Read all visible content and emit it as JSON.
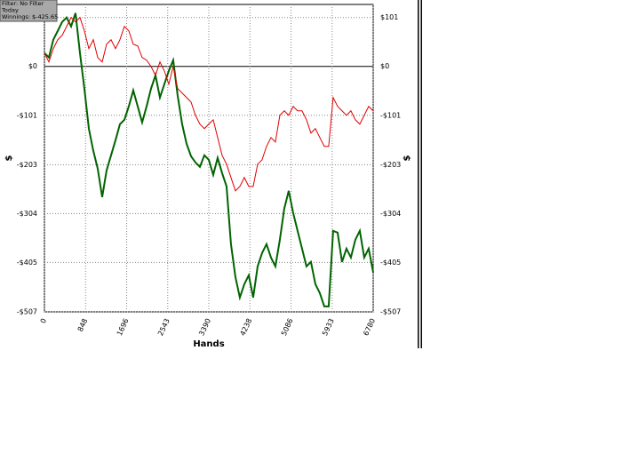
{
  "chart_data": {
    "type": "line",
    "annotations": [
      "Filter: No Filter",
      "Today",
      "Winnings: $-425.65"
    ],
    "xlabel": "Hands",
    "ylabel": "$",
    "x": [
      0,
      92,
      183,
      275,
      366,
      458,
      550,
      641,
      733,
      824,
      916,
      1008,
      1099,
      1191,
      1282,
      1374,
      1466,
      1557,
      1649,
      1740,
      1832,
      1924,
      2015,
      2107,
      2198,
      2290,
      2382,
      2473,
      2565,
      2656,
      2748,
      2840,
      2931,
      3023,
      3114,
      3206,
      3298,
      3389,
      3481,
      3572,
      3664,
      3756,
      3847,
      3939,
      4030,
      4122,
      4214,
      4305,
      4397,
      4488,
      4580,
      4672,
      4763,
      4855,
      4946,
      5038,
      5130,
      5221,
      5313,
      5404,
      5496,
      5588,
      5679,
      5771,
      5862,
      5954,
      6046,
      6137,
      6229,
      6320,
      6412,
      6504,
      6595,
      6687,
      6780
    ],
    "series": [
      {
        "color": "#006400",
        "values": [
          27.5,
          18.4,
          55.1,
          73.4,
          91.8,
          101,
          82.6,
          110.2,
          27.5,
          -45.9,
          -128.5,
          -174.4,
          -211.1,
          -269.9,
          -214.8,
          -183.6,
          -152.4,
          -119.3,
          -110.2,
          -82.6,
          -49.6,
          -82.6,
          -115.7,
          -82.6,
          -45.9,
          -18.4,
          -64.3,
          -36.7,
          -9.2,
          12.9,
          -60.6,
          -119.3,
          -159.7,
          -185.4,
          -198.3,
          -207.5,
          -183.6,
          -192.8,
          -224,
          -189.1,
          -220.3,
          -247.9,
          -367.2,
          -435.1,
          -477.4,
          -449.8,
          -431.5,
          -477.4,
          -413.1,
          -385.6,
          -367.2,
          -394.7,
          -413.1,
          -358,
          -293.8,
          -257,
          -303,
          -339.7,
          -376.4,
          -413.1,
          -403.9,
          -449.8,
          -468.2,
          -495.7,
          -495.7,
          -339.7,
          -343.3,
          -403.9,
          -376.4,
          -394.7,
          -358,
          -339.7,
          -394.7,
          -376.4,
          -425.6
        ]
      },
      {
        "color": "#e00000",
        "values": [
          27.5,
          9.2,
          36.7,
          55.1,
          64.3,
          82.6,
          101,
          91.8,
          101,
          73.4,
          36.7,
          55.1,
          18.4,
          9.2,
          45.9,
          55.1,
          36.7,
          55.1,
          82.6,
          73.4,
          45.9,
          42.2,
          18.4,
          12.9,
          0,
          -18.4,
          9.2,
          -9.2,
          -36.7,
          0,
          -45.9,
          -55.1,
          -64.3,
          -73.4,
          -101,
          -119.3,
          -128.5,
          -119.3,
          -110.2,
          -146.9,
          -183.6,
          -202,
          -229.5,
          -257,
          -247.9,
          -229.5,
          -247.9,
          -247.9,
          -202,
          -192.8,
          -165.2,
          -146.9,
          -156.1,
          -101,
          -91.8,
          -101,
          -82.6,
          -91.8,
          -91.8,
          -110.2,
          -137.7,
          -128.5,
          -146.9,
          -165.2,
          -165.2,
          -64.3,
          -82.6,
          -91.8,
          -101,
          -91.8,
          -110.2,
          -119.3,
          -101,
          -82.6,
          -91.8
        ]
      }
    ],
    "xlim": [
      0,
      6780
    ],
    "ylim": [
      -507,
      128
    ],
    "xticks": [
      0,
      848,
      1696,
      2543,
      3390,
      4238,
      5086,
      5933,
      6780
    ],
    "yticks": [
      {
        "value": 101,
        "label": "$101"
      },
      {
        "value": 0,
        "label": "$0"
      },
      {
        "value": -101,
        "label": "-$101"
      },
      {
        "value": -203,
        "label": "-$203"
      },
      {
        "value": -304,
        "label": "-$304"
      },
      {
        "value": -405,
        "label": "-$405"
      },
      {
        "value": -507,
        "label": "-$507"
      }
    ],
    "grid": true
  }
}
